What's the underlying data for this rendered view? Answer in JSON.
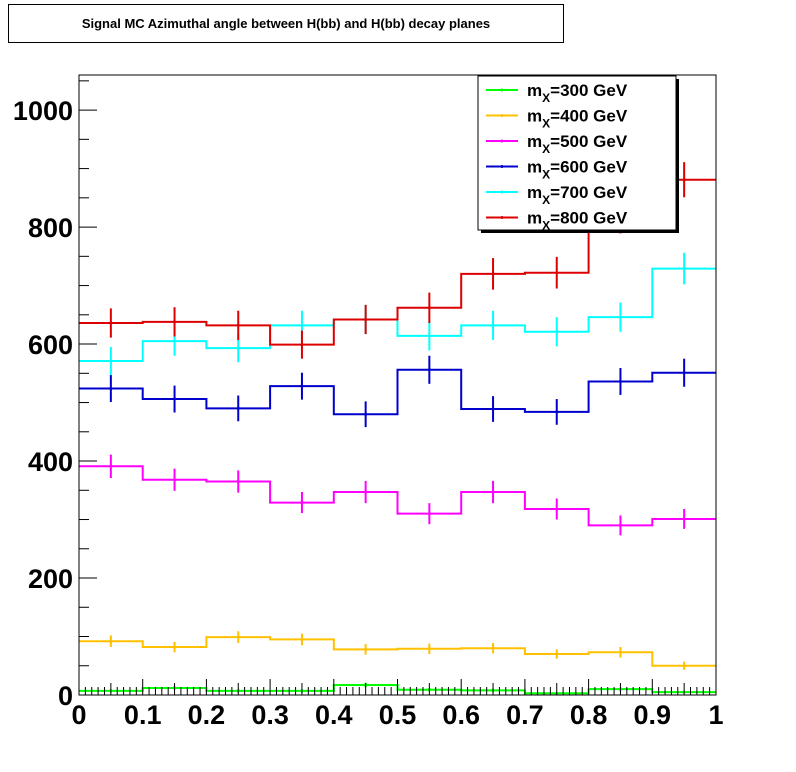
{
  "chart_data": {
    "type": "line",
    "title": "Signal MC Azimuthal angle between H(bb) and H(bb) decay planes",
    "xlabel": "",
    "ylabel": "",
    "xlim": [
      0,
      1
    ],
    "ylim": [
      0,
      1060
    ],
    "x_ticks": [
      "0",
      "0.1",
      "0.2",
      "0.3",
      "0.4",
      "0.5",
      "0.6",
      "0.7",
      "0.8",
      "0.9",
      "1"
    ],
    "y_ticks": [
      "0",
      "200",
      "400",
      "600",
      "800",
      "1000"
    ],
    "bin_edges": [
      0,
      0.1,
      0.2,
      0.3,
      0.4,
      0.5,
      0.6,
      0.7,
      0.8,
      0.9,
      1.0
    ],
    "legend_position": "top-right",
    "series": [
      {
        "name": "m_X=300 GeV",
        "label_main": "m",
        "label_sub": "X",
        "label_rest": "=300 GeV",
        "color": "#00ff00",
        "values": [
          7,
          12,
          7,
          7,
          17,
          9,
          8,
          3,
          10,
          5
        ],
        "errors": [
          3,
          3,
          3,
          3,
          4,
          3,
          3,
          2,
          3,
          2
        ]
      },
      {
        "name": "m_X=400 GeV",
        "label_main": "m",
        "label_sub": "X",
        "label_rest": "=400 GeV",
        "color": "#ffc000",
        "values": [
          92,
          82,
          99,
          95,
          78,
          79,
          80,
          70,
          73,
          50
        ],
        "errors": [
          10,
          9,
          10,
          10,
          9,
          9,
          9,
          8,
          9,
          7
        ]
      },
      {
        "name": "m_X=500 GeV",
        "label_main": "m",
        "label_sub": "X",
        "label_rest": "=500 GeV",
        "color": "#ff00ff",
        "values": [
          391,
          368,
          365,
          329,
          347,
          310,
          347,
          318,
          290,
          301
        ],
        "errors": [
          20,
          19,
          19,
          18,
          19,
          18,
          19,
          18,
          17,
          17
        ]
      },
      {
        "name": "m_X=600 GeV",
        "label_main": "m",
        "label_sub": "X",
        "label_rest": "=600 GeV",
        "color": "#0000cc",
        "values": [
          524,
          506,
          490,
          528,
          480,
          556,
          489,
          484,
          536,
          551
        ],
        "errors": [
          23,
          23,
          22,
          23,
          22,
          24,
          22,
          22,
          23,
          24
        ]
      },
      {
        "name": "m_X=700 GeV",
        "label_main": "m",
        "label_sub": "X",
        "label_rest": "=700 GeV",
        "color": "#00ffff",
        "values": [
          571,
          605,
          593,
          632,
          642,
          614,
          632,
          621,
          646,
          729
        ],
        "errors": [
          24,
          25,
          24,
          25,
          25,
          25,
          25,
          25,
          25,
          27
        ]
      },
      {
        "name": "m_X=800 GeV",
        "label_main": "m",
        "label_sub": "X",
        "label_rest": "=800 GeV",
        "color": "#dd0000",
        "values": [
          636,
          638,
          632,
          599,
          642,
          662,
          720,
          722,
          818,
          881
        ],
        "errors": [
          25,
          25,
          25,
          24,
          25,
          26,
          27,
          27,
          29,
          30
        ]
      }
    ]
  }
}
